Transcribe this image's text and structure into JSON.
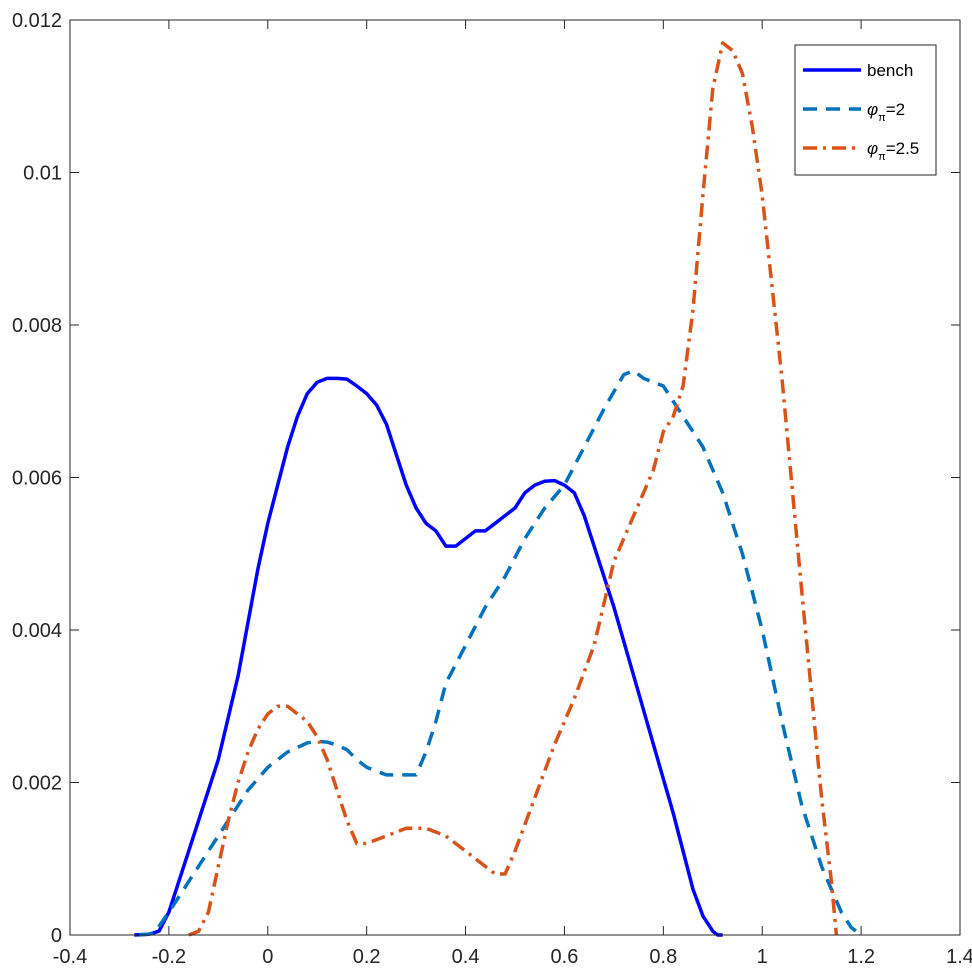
{
  "chart_data": {
    "type": "line",
    "title": "",
    "xlabel": "",
    "ylabel": "",
    "xlim": [
      -0.4,
      1.4
    ],
    "ylim": [
      0,
      0.012
    ],
    "grid": false,
    "box": true,
    "legend_location": "top-right",
    "x_ticks": [
      -0.4,
      -0.2,
      0,
      0.2,
      0.4,
      0.6,
      0.8,
      1,
      1.2,
      1.4
    ],
    "x_tick_labels": [
      "-0.4",
      "-0.2",
      "0",
      "0.2",
      "0.4",
      "0.6",
      "0.8",
      "1",
      "1.2",
      "1.4"
    ],
    "y_ticks": [
      0,
      0.002,
      0.004,
      0.006,
      0.008,
      0.01,
      0.012
    ],
    "y_tick_labels": [
      "0",
      "0.002",
      "0.004",
      "0.006",
      "0.008",
      "0.01",
      "0.012"
    ],
    "series": [
      {
        "name": "bench",
        "legend_symbol": "",
        "legend_subscript": "",
        "legend_suffix": "bench",
        "color": "#0000ff",
        "style": "solid",
        "x": [
          -0.27,
          -0.24,
          -0.22,
          -0.2,
          -0.18,
          -0.16,
          -0.14,
          -0.1,
          -0.06,
          -0.02,
          0,
          0.02,
          0.04,
          0.06,
          0.08,
          0.1,
          0.12,
          0.14,
          0.16,
          0.18,
          0.2,
          0.22,
          0.24,
          0.26,
          0.28,
          0.3,
          0.32,
          0.34,
          0.36,
          0.38,
          0.4,
          0.42,
          0.44,
          0.46,
          0.48,
          0.5,
          0.52,
          0.54,
          0.56,
          0.58,
          0.6,
          0.62,
          0.64,
          0.66,
          0.7,
          0.74,
          0.78,
          0.82,
          0.86,
          0.88,
          0.9,
          0.91,
          0.92
        ],
        "y": [
          0,
          1e-05,
          5e-05,
          0.0003,
          0.0007,
          0.0011,
          0.0015,
          0.0023,
          0.0034,
          0.0048,
          0.0054,
          0.0059,
          0.0064,
          0.0068,
          0.0071,
          0.00725,
          0.0073,
          0.0073,
          0.00729,
          0.0072,
          0.0071,
          0.00695,
          0.0067,
          0.0063,
          0.0059,
          0.0056,
          0.0054,
          0.0053,
          0.0051,
          0.0051,
          0.0052,
          0.0053,
          0.0053,
          0.0054,
          0.0055,
          0.0056,
          0.0058,
          0.0059,
          0.00595,
          0.00596,
          0.0059,
          0.0058,
          0.0055,
          0.0051,
          0.0043,
          0.0034,
          0.0025,
          0.0016,
          0.0006,
          0.00025,
          5e-05,
          0,
          0
        ]
      },
      {
        "name": "=2",
        "legend_symbol": "φ",
        "legend_subscript": "π",
        "legend_suffix": "=2",
        "color": "#0072bd",
        "style": "dashed",
        "x": [
          -0.26,
          -0.23,
          -0.2,
          -0.16,
          -0.12,
          -0.08,
          -0.04,
          0,
          0.04,
          0.08,
          0.1,
          0.12,
          0.14,
          0.16,
          0.18,
          0.2,
          0.24,
          0.28,
          0.3,
          0.32,
          0.34,
          0.36,
          0.4,
          0.44,
          0.48,
          0.52,
          0.56,
          0.6,
          0.64,
          0.68,
          0.72,
          0.74,
          0.76,
          0.8,
          0.84,
          0.88,
          0.92,
          0.96,
          1.0,
          1.04,
          1.08,
          1.12,
          1.14,
          1.16,
          1.18,
          1.2
        ],
        "y": [
          0,
          2e-05,
          0.0003,
          0.0007,
          0.0011,
          0.0015,
          0.0019,
          0.0022,
          0.0024,
          0.00252,
          0.00254,
          0.00253,
          0.00249,
          0.00243,
          0.0023,
          0.0022,
          0.0021,
          0.0021,
          0.0021,
          0.0024,
          0.0028,
          0.0033,
          0.0038,
          0.0043,
          0.0047,
          0.0052,
          0.0056,
          0.0059,
          0.0064,
          0.0069,
          0.00735,
          0.0074,
          0.0073,
          0.0072,
          0.0068,
          0.0064,
          0.0058,
          0.005,
          0.004,
          0.0028,
          0.0017,
          0.0009,
          0.0006,
          0.0003,
          0.0001,
          0
        ]
      },
      {
        "name": "=2.5",
        "legend_symbol": "φ",
        "legend_subscript": "π",
        "legend_suffix": "=2.5",
        "color": "#d95319",
        "style": "dashdot",
        "x": [
          -0.16,
          -0.14,
          -0.12,
          -0.1,
          -0.08,
          -0.06,
          -0.04,
          -0.02,
          0,
          0.02,
          0.04,
          0.06,
          0.08,
          0.1,
          0.12,
          0.14,
          0.16,
          0.18,
          0.2,
          0.24,
          0.28,
          0.3,
          0.32,
          0.36,
          0.4,
          0.44,
          0.46,
          0.48,
          0.5,
          0.54,
          0.58,
          0.62,
          0.66,
          0.7,
          0.74,
          0.78,
          0.8,
          0.82,
          0.84,
          0.86,
          0.88,
          0.9,
          0.92,
          0.94,
          0.96,
          0.98,
          1.0,
          1.04,
          1.08,
          1.12,
          1.14,
          1.15
        ],
        "y": [
          0,
          5e-05,
          0.0003,
          0.0009,
          0.0015,
          0.002,
          0.0024,
          0.0027,
          0.0029,
          0.003,
          0.003,
          0.0029,
          0.0028,
          0.0026,
          0.0023,
          0.0019,
          0.0015,
          0.0012,
          0.0012,
          0.0013,
          0.0014,
          0.0014,
          0.0014,
          0.0013,
          0.0011,
          0.0009,
          0.0008,
          0.0008,
          0.0011,
          0.0018,
          0.0025,
          0.0031,
          0.0038,
          0.0049,
          0.0055,
          0.0061,
          0.0066,
          0.0068,
          0.0072,
          0.0082,
          0.0097,
          0.0111,
          0.0117,
          0.0116,
          0.0113,
          0.0106,
          0.0097,
          0.0073,
          0.0045,
          0.0018,
          0.0007,
          0
        ]
      }
    ]
  }
}
